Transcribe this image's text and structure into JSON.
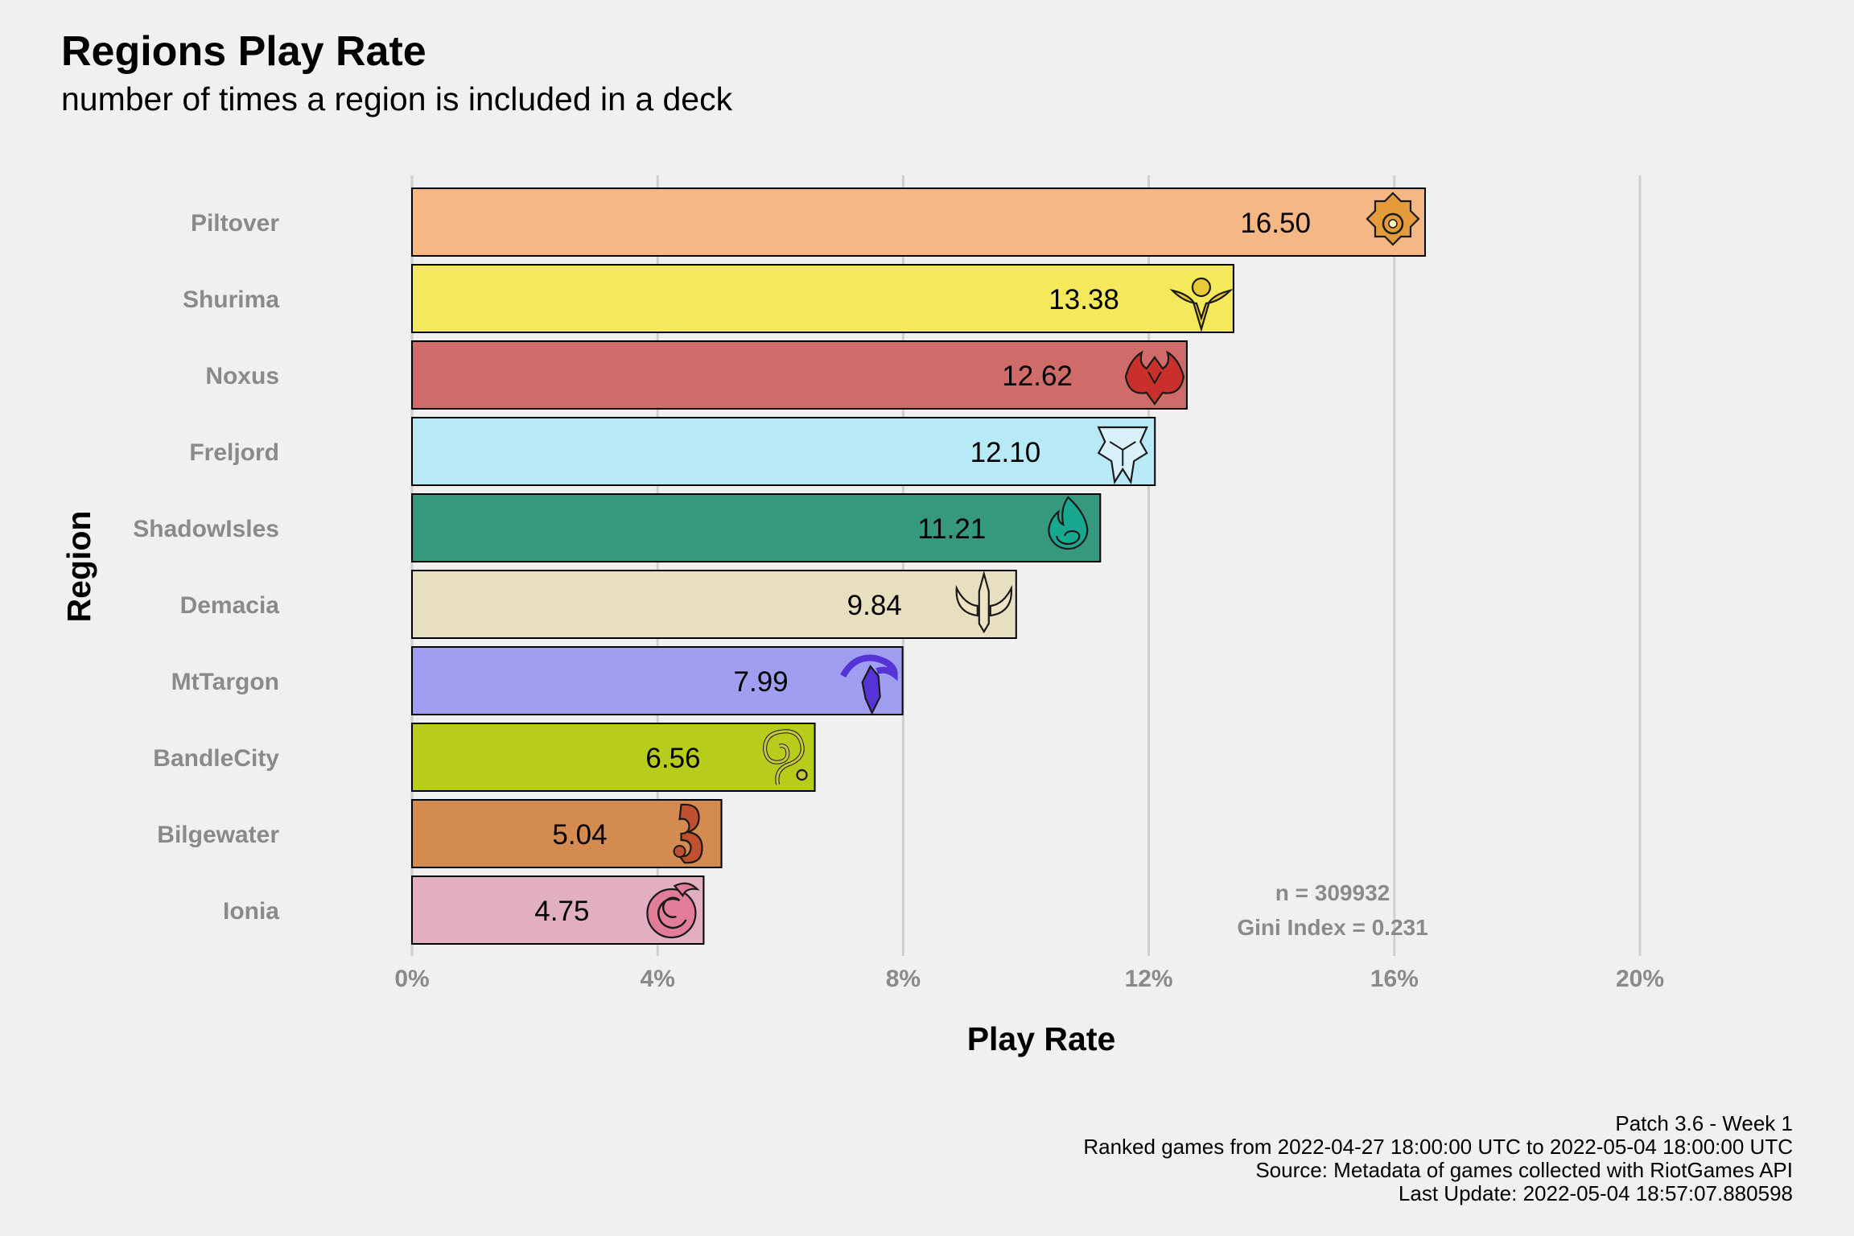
{
  "title": "Regions Play Rate",
  "subtitle": "number of times a region is included in a deck",
  "caption": [
    "Patch 3.6 - Week 1",
    "Ranked games from 2022-04-27 18:00:00 UTC to 2022-05-04 18:00:00 UTC",
    "Source: Metadata of games collected with RiotGames API",
    "Last Update: 2022-05-04 18:57:07.880598"
  ],
  "annotation": {
    "n": "n = 309932",
    "gini": "Gini Index = 0.231"
  },
  "chart_data": {
    "type": "bar",
    "orientation": "horizontal",
    "title": "Regions Play Rate",
    "subtitle": "number of times a region is included in a deck",
    "xlabel": "Play Rate",
    "ylabel": "Region",
    "xlim": [
      0,
      20
    ],
    "xticks": [
      0,
      4,
      8,
      12,
      16,
      20
    ],
    "xtick_labels": [
      "0%",
      "4%",
      "8%",
      "12%",
      "16%",
      "20%"
    ],
    "grid": "vertical major gridlines",
    "categories": [
      "Piltover",
      "Shurima",
      "Noxus",
      "Freljord",
      "ShadowIsles",
      "Demacia",
      "MtTargon",
      "BandleCity",
      "Bilgewater",
      "Ionia"
    ],
    "values": [
      16.5,
      13.38,
      12.62,
      12.1,
      11.21,
      9.84,
      7.99,
      6.56,
      5.04,
      4.75
    ],
    "data_labels": [
      "16.50",
      "13.38",
      "12.62",
      "12.10",
      "11.21",
      "9.84",
      "7.99",
      "6.56",
      "5.04",
      "4.75"
    ],
    "colors": [
      "#f5b783",
      "#f3e95a",
      "#cf6c6a",
      "#b8e9f6",
      "#36997d",
      "#e8dec0",
      "#a09ef0",
      "#b8cc1b",
      "#d38b4f",
      "#e1aec2"
    ],
    "icons": [
      "piltover-icon",
      "shurima-icon",
      "noxus-icon",
      "freljord-icon",
      "shadowisles-icon",
      "demacia-icon",
      "mttargon-icon",
      "bandlecity-icon",
      "bilgewater-icon",
      "ionia-icon"
    ],
    "icon_colors": [
      "#e39b3b",
      "#e8c93a",
      "#c9302c",
      "#d9f1fb",
      "#17a890",
      "#efe3c4",
      "#5533d6",
      "#c9c63f",
      "#c0502e",
      "#e17d98"
    ]
  }
}
